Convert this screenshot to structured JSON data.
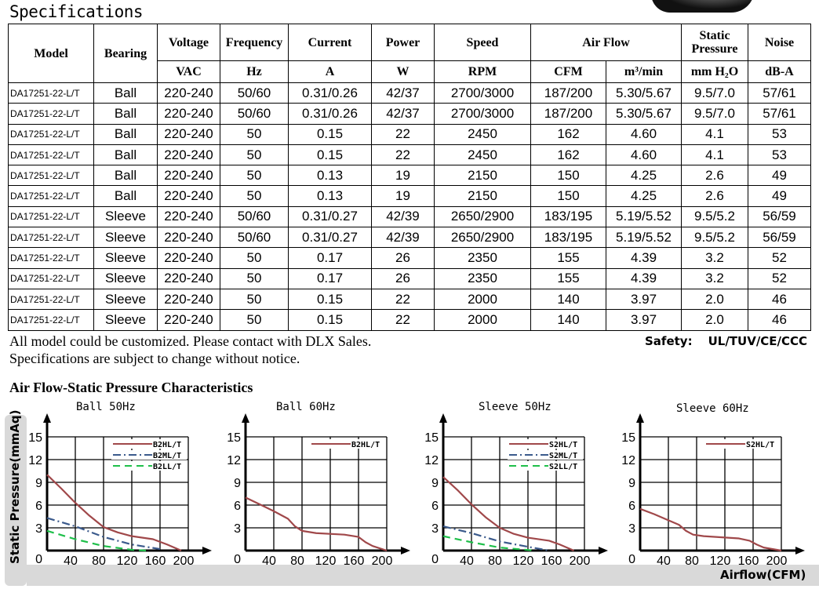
{
  "title": "Specifications",
  "table": {
    "headers": [
      "Model",
      "Bearing",
      "Voltage",
      "Frequency",
      "Current",
      "Power",
      "Speed",
      "Air Flow",
      "Static Pressure",
      "Noise"
    ],
    "units": [
      "VAC",
      "Hz",
      "A",
      "W",
      "RPM",
      "CFM",
      "m³/min",
      "mm H₂O",
      "dB-A"
    ],
    "rows": [
      [
        "DA17251-22-L/T",
        "Ball",
        "220-240",
        "50/60",
        "0.31/0.26",
        "42/37",
        "2700/3000",
        "187/200",
        "5.30/5.67",
        "9.5/7.0",
        "57/61"
      ],
      [
        "DA17251-22-L/T",
        "Ball",
        "220-240",
        "50/60",
        "0.31/0.26",
        "42/37",
        "2700/3000",
        "187/200",
        "5.30/5.67",
        "9.5/7.0",
        "57/61"
      ],
      [
        "DA17251-22-L/T",
        "Ball",
        "220-240",
        "50",
        "0.15",
        "22",
        "2450",
        "162",
        "4.60",
        "4.1",
        "53"
      ],
      [
        "DA17251-22-L/T",
        "Ball",
        "220-240",
        "50",
        "0.15",
        "22",
        "2450",
        "162",
        "4.60",
        "4.1",
        "53"
      ],
      [
        "DA17251-22-L/T",
        "Ball",
        "220-240",
        "50",
        "0.13",
        "19",
        "2150",
        "150",
        "4.25",
        "2.6",
        "49"
      ],
      [
        "DA17251-22-L/T",
        "Ball",
        "220-240",
        "50",
        "0.13",
        "19",
        "2150",
        "150",
        "4.25",
        "2.6",
        "49"
      ],
      [
        "DA17251-22-L/T",
        "Sleeve",
        "220-240",
        "50/60",
        "0.31/0.27",
        "42/39",
        "2650/2900",
        "183/195",
        "5.19/5.52",
        "9.5/5.2",
        "56/59"
      ],
      [
        "DA17251-22-L/T",
        "Sleeve",
        "220-240",
        "50/60",
        "0.31/0.27",
        "42/39",
        "2650/2900",
        "183/195",
        "5.19/5.52",
        "9.5/5.2",
        "56/59"
      ],
      [
        "DA17251-22-L/T",
        "Sleeve",
        "220-240",
        "50",
        "0.17",
        "26",
        "2350",
        "155",
        "4.39",
        "3.2",
        "52"
      ],
      [
        "DA17251-22-L/T",
        "Sleeve",
        "220-240",
        "50",
        "0.17",
        "26",
        "2350",
        "155",
        "4.39",
        "3.2",
        "52"
      ],
      [
        "DA17251-22-L/T",
        "Sleeve",
        "220-240",
        "50",
        "0.15",
        "22",
        "2000",
        "140",
        "3.97",
        "2.0",
        "46"
      ],
      [
        "DA17251-22-L/T",
        "Sleeve",
        "220-240",
        "50",
        "0.15",
        "22",
        "2000",
        "140",
        "3.97",
        "2.0",
        "46"
      ]
    ]
  },
  "notes": [
    "All model could be customized. Please contact with DLX Sales.",
    "Specifications are subject to change without notice."
  ],
  "safety": {
    "label": "Safety:",
    "value": "UL/TUV/CE/CCC"
  },
  "chart_heading": "Air Flow-Static Pressure Characteristics",
  "ylabel": "Static Pressure(mmAq)",
  "xlabel": "Airflow(CFM)",
  "chart_data": [
    {
      "type": "line",
      "title": "Ball 50Hz",
      "xlim": [
        0,
        200
      ],
      "ylim": [
        0,
        15
      ],
      "xticks": [
        0,
        40,
        80,
        120,
        160,
        200
      ],
      "yticks": [
        0,
        3,
        6,
        9,
        12,
        15
      ],
      "grid": true,
      "legend": "top-right",
      "series": [
        {
          "name": "B2HL/T",
          "color": "#a0484a",
          "style": "solid",
          "x": [
            0,
            20,
            40,
            60,
            80,
            100,
            120,
            150,
            170,
            190
          ],
          "y": [
            10,
            8.2,
            6.3,
            4.6,
            3.1,
            2.4,
            1.9,
            1.5,
            0.8,
            0
          ]
        },
        {
          "name": "B2ML/T",
          "color": "#3b5a8c",
          "style": "dashdot",
          "x": [
            0,
            40,
            80,
            120,
            160
          ],
          "y": [
            4.3,
            3.2,
            1.8,
            0.8,
            0.2
          ]
        },
        {
          "name": "B2LL/T",
          "color": "#1fbf4a",
          "style": "dash",
          "x": [
            0,
            40,
            80,
            120,
            140
          ],
          "y": [
            2.6,
            1.5,
            0.6,
            0.1,
            0
          ]
        }
      ]
    },
    {
      "type": "line",
      "title": "Ball 60Hz",
      "xlim": [
        0,
        200
      ],
      "ylim": [
        0,
        15
      ],
      "xticks": [
        0,
        40,
        80,
        120,
        160,
        200
      ],
      "yticks": [
        0,
        3,
        6,
        9,
        12,
        15
      ],
      "grid": true,
      "legend": "top-right",
      "series": [
        {
          "name": "B2HL/T",
          "color": "#a0484a",
          "style": "solid",
          "x": [
            0,
            20,
            40,
            60,
            70,
            80,
            100,
            140,
            160,
            170,
            180,
            200
          ],
          "y": [
            7,
            6.1,
            5.2,
            4.2,
            3.2,
            2.6,
            2.3,
            2.1,
            1.8,
            1.1,
            0.6,
            0
          ]
        }
      ]
    },
    {
      "type": "line",
      "title": "Sleeve 50Hz",
      "xlim": [
        0,
        200
      ],
      "ylim": [
        0,
        15
      ],
      "xticks": [
        0,
        40,
        80,
        120,
        160,
        200
      ],
      "yticks": [
        0,
        3,
        6,
        9,
        12,
        15
      ],
      "grid": true,
      "legend": "top-right",
      "series": [
        {
          "name": "S2HL/T",
          "color": "#a0484a",
          "style": "solid",
          "x": [
            0,
            20,
            40,
            60,
            80,
            100,
            120,
            150,
            165,
            185
          ],
          "y": [
            9.7,
            8,
            6.1,
            4.4,
            3,
            2.2,
            1.7,
            1.3,
            0.8,
            0
          ]
        },
        {
          "name": "S2ML/T",
          "color": "#3b5a8c",
          "style": "dashdot",
          "x": [
            0,
            40,
            80,
            120,
            150
          ],
          "y": [
            3.2,
            2.3,
            1.2,
            0.5,
            0
          ]
        },
        {
          "name": "S2LL/T",
          "color": "#1fbf4a",
          "style": "dash",
          "x": [
            0,
            40,
            80,
            130
          ],
          "y": [
            1.9,
            1.1,
            0.4,
            0
          ]
        }
      ]
    },
    {
      "type": "line",
      "title": "Sleeve 60Hz",
      "xlim": [
        0,
        200
      ],
      "ylim": [
        0,
        15
      ],
      "xticks": [
        0,
        40,
        80,
        120,
        160,
        200
      ],
      "yticks": [
        0,
        3,
        6,
        9,
        12,
        15
      ],
      "grid": true,
      "legend": "top-right",
      "series": [
        {
          "name": "S2HL/T",
          "color": "#a0484a",
          "style": "solid",
          "x": [
            0,
            20,
            40,
            55,
            65,
            75,
            90,
            140,
            155,
            165,
            175,
            200
          ],
          "y": [
            5.5,
            4.8,
            4,
            3.4,
            2.6,
            2.1,
            1.9,
            1.6,
            1.3,
            0.8,
            0.4,
            0
          ]
        }
      ]
    }
  ]
}
